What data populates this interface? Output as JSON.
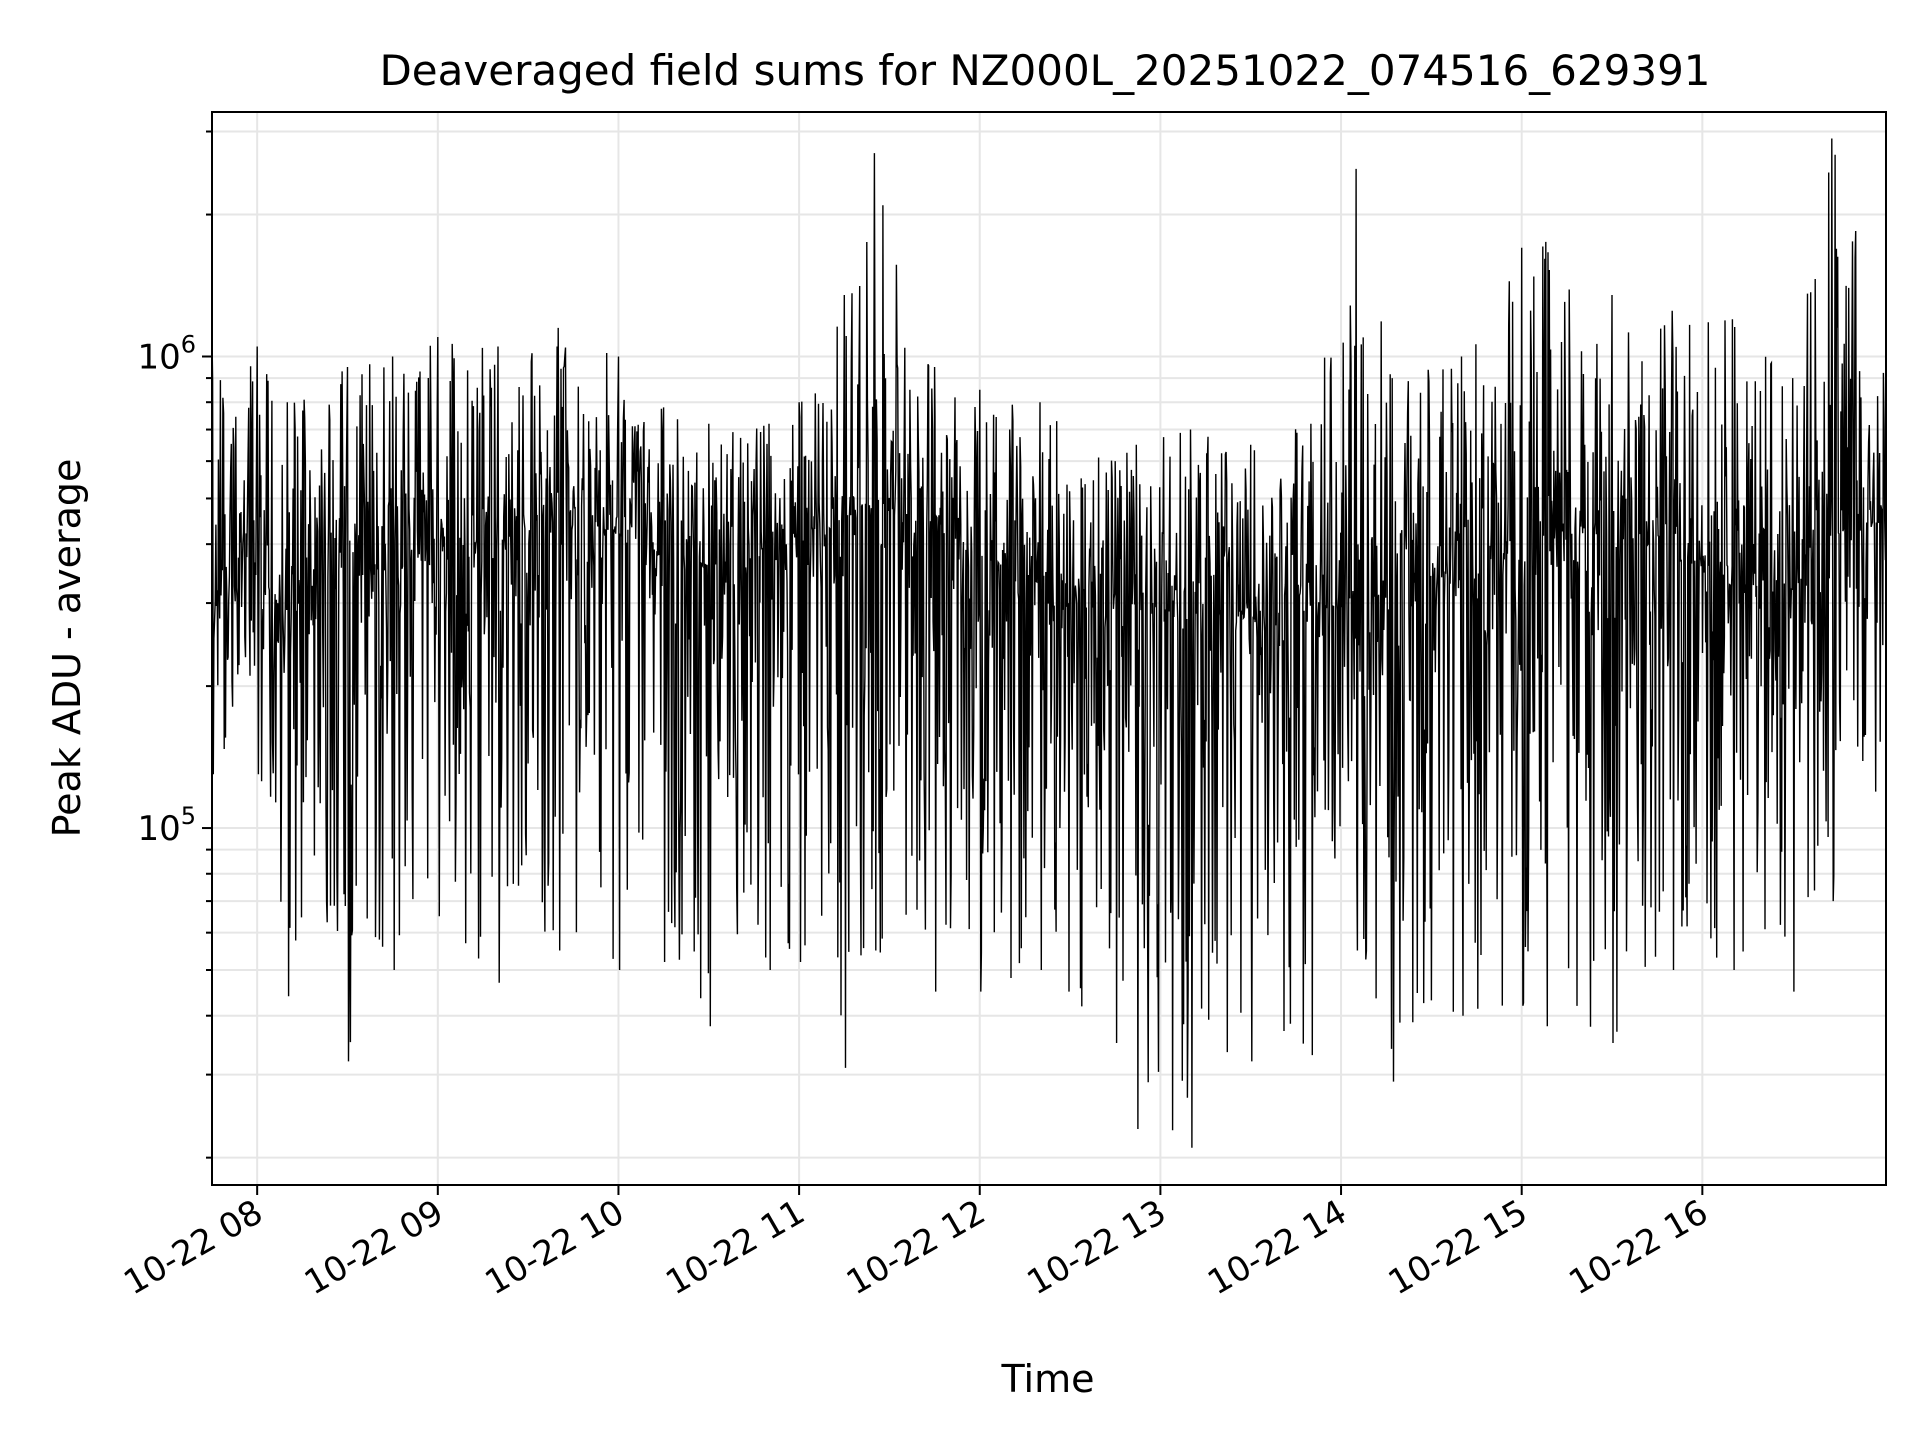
{
  "chart_data": {
    "type": "line",
    "title": "Deaveraged field sums for NZ000L_20251022_074516_629391",
    "xlabel": "Time",
    "ylabel": "Peak ADU - average",
    "yscale": "log",
    "ylim": [
      17500,
      3300000
    ],
    "xlim": [
      "2025-10-22 07:45",
      "2025-10-22 17:01"
    ],
    "grid": true,
    "line_color": "#000000",
    "grid_color": "#e6e6e6",
    "x_ticks": [
      {
        "value": "2025-10-22 08:00",
        "label": "10-22 08"
      },
      {
        "value": "2025-10-22 09:00",
        "label": "10-22 09"
      },
      {
        "value": "2025-10-22 10:00",
        "label": "10-22 10"
      },
      {
        "value": "2025-10-22 11:00",
        "label": "10-22 11"
      },
      {
        "value": "2025-10-22 12:00",
        "label": "10-22 12"
      },
      {
        "value": "2025-10-22 13:00",
        "label": "10-22 13"
      },
      {
        "value": "2025-10-22 14:00",
        "label": "10-22 14"
      },
      {
        "value": "2025-10-22 15:00",
        "label": "10-22 15"
      },
      {
        "value": "2025-10-22 16:00",
        "label": "10-22 16"
      }
    ],
    "y_ticks": [
      {
        "value": 100000,
        "base": "10",
        "exp": "5"
      },
      {
        "value": 1000000,
        "base": "10",
        "exp": "6"
      }
    ],
    "series": [
      {
        "color": "#000000",
        "x": [
          "2025-10-22 07:45",
          "2025-10-22 08:00",
          "2025-10-22 08:10",
          "2025-10-22 08:30",
          "2025-10-22 08:45",
          "2025-10-22 09:00",
          "2025-10-22 09:20",
          "2025-10-22 09:40",
          "2025-10-22 10:00",
          "2025-10-22 10:15",
          "2025-10-22 10:30",
          "2025-10-22 10:50",
          "2025-10-22 11:00",
          "2025-10-22 11:15",
          "2025-10-22 11:25",
          "2025-10-22 11:45",
          "2025-10-22 12:00",
          "2025-10-22 12:20",
          "2025-10-22 12:45",
          "2025-10-22 12:52",
          "2025-10-22 13:10",
          "2025-10-22 13:30",
          "2025-10-22 13:50",
          "2025-10-22 14:05",
          "2025-10-22 14:17",
          "2025-10-22 14:40",
          "2025-10-22 15:00",
          "2025-10-22 15:08",
          "2025-10-22 15:30",
          "2025-10-22 15:50",
          "2025-10-22 16:10",
          "2025-10-22 16:30",
          "2025-10-22 16:43",
          "2025-10-22 17:01"
        ],
        "median": [
          300000,
          350000,
          280000,
          400000,
          330000,
          420000,
          380000,
          480000,
          420000,
          380000,
          360000,
          380000,
          420000,
          450000,
          480000,
          420000,
          380000,
          330000,
          300000,
          280000,
          280000,
          280000,
          290000,
          300000,
          320000,
          360000,
          380000,
          420000,
          430000,
          380000,
          330000,
          320000,
          420000,
          450000
        ],
        "max": [
          1100000,
          1050000,
          800000,
          950000,
          1000000,
          1100000,
          1050000,
          1150000,
          1000000,
          780000,
          720000,
          720000,
          800000,
          1350000,
          2700000,
          950000,
          850000,
          800000,
          600000,
          650000,
          700000,
          650000,
          720000,
          2500000,
          900000,
          1000000,
          1700000,
          1750000,
          1350000,
          1250000,
          1200000,
          900000,
          2900000,
          1050000
        ],
        "min": [
          130000,
          130000,
          44000,
          32000,
          50000,
          65000,
          47000,
          55000,
          50000,
          52000,
          38000,
          50000,
          52000,
          31000,
          55000,
          45000,
          45000,
          50000,
          35000,
          23000,
          21000,
          32000,
          33000,
          55000,
          29000,
          40000,
          42000,
          38000,
          35000,
          50000,
          50000,
          45000,
          70000,
          130000
        ]
      }
    ]
  }
}
